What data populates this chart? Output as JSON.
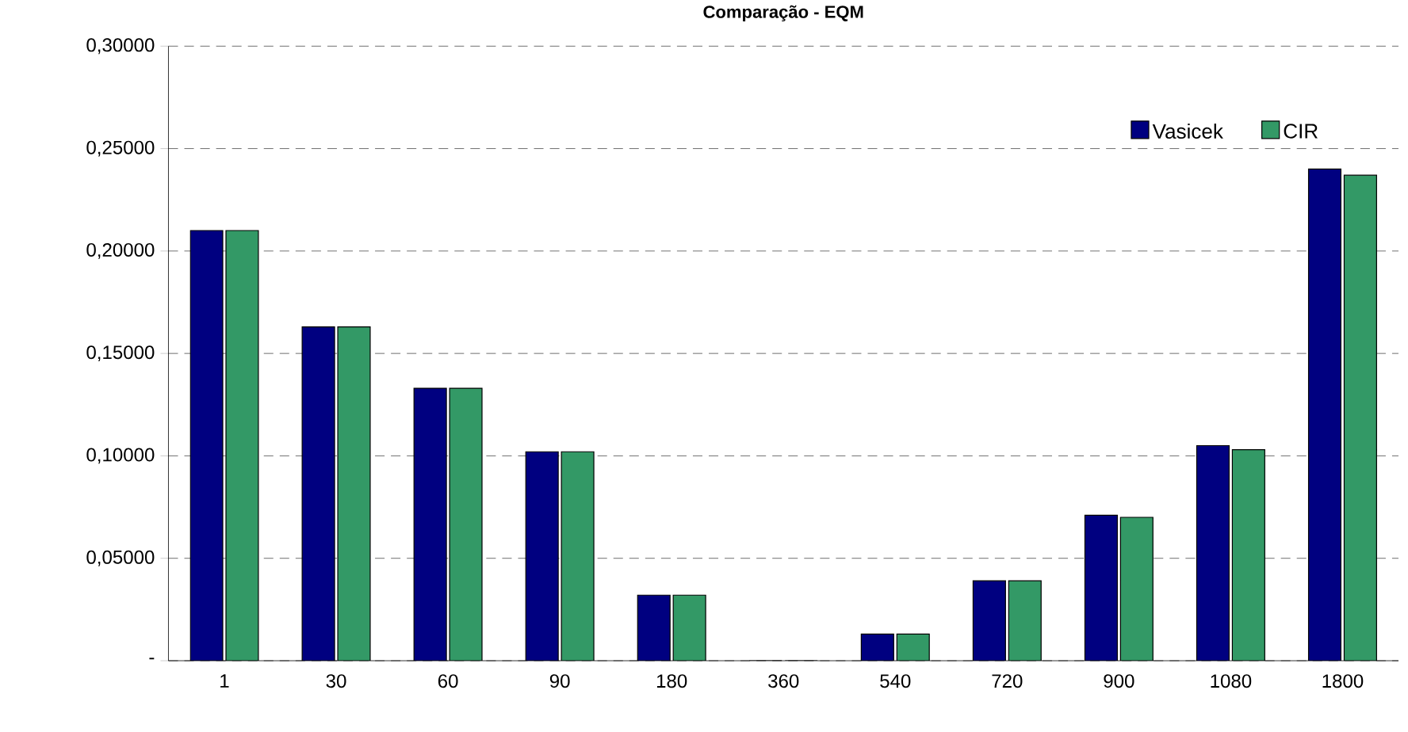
{
  "chart_data": {
    "type": "bar",
    "title": "**Comparação - EQM**",
    "categories": [
      "1",
      "30",
      "60",
      "90",
      "180",
      "360",
      "540",
      "720",
      "900",
      "1080",
      "1800"
    ],
    "series": [
      {
        "name": "Vasicek",
        "color": "#000080",
        "values": [
          0.21,
          0.163,
          0.133,
          0.102,
          0.032,
          0,
          0.013,
          0.039,
          0.071,
          0.105,
          0.24
        ]
      },
      {
        "name": "CIR",
        "color": "#339966",
        "values": [
          0.21,
          0.163,
          0.133,
          0.102,
          0.032,
          0,
          0.013,
          0.039,
          0.07,
          0.103,
          0.237
        ]
      }
    ],
    "ylim": [
      0,
      0.3
    ],
    "yticks": [
      {
        "value": 0,
        "label": "-"
      },
      {
        "value": 0.05,
        "label": "0,05000"
      },
      {
        "value": 0.1,
        "label": "0,10000"
      },
      {
        "value": 0.15,
        "label": "0,15000"
      },
      {
        "value": 0.2,
        "label": "0,20000"
      },
      {
        "value": 0.25,
        "label": "0,25000"
      },
      {
        "value": 0.3,
        "label": "0,30000"
      }
    ],
    "grid": "y",
    "legend": "top right"
  }
}
